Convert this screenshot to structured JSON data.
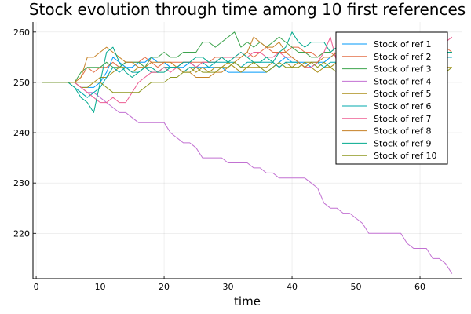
{
  "chart_data": {
    "type": "line",
    "title": "Stock evolution through time among 10 first references",
    "xlabel": "time",
    "ylabel": "",
    "xlim": [
      -0.5,
      66.5
    ],
    "ylim": [
      211,
      262
    ],
    "xticks": [
      0,
      10,
      20,
      30,
      40,
      50,
      60
    ],
    "yticks": [
      220,
      230,
      240,
      250,
      260
    ],
    "grid": true,
    "legend_position": "top-right",
    "x": [
      1,
      2,
      3,
      4,
      5,
      6,
      7,
      8,
      9,
      10,
      11,
      12,
      13,
      14,
      15,
      16,
      17,
      18,
      19,
      20,
      21,
      22,
      23,
      24,
      25,
      26,
      27,
      28,
      29,
      30,
      31,
      32,
      33,
      34,
      35,
      36,
      37,
      38,
      39,
      40,
      41,
      42,
      43,
      44,
      45,
      46,
      47,
      48,
      49,
      50,
      51,
      52,
      53,
      54,
      55,
      56,
      57,
      58,
      59,
      60,
      61,
      62,
      63,
      64,
      65
    ],
    "series": [
      {
        "name": "Stock of ref 1",
        "color": "#009AFA",
        "values": [
          250,
          250,
          250,
          250,
          250,
          250,
          249,
          249,
          249,
          250,
          252,
          255,
          254,
          253,
          253,
          254,
          254,
          255,
          254,
          254,
          253,
          253,
          253,
          254,
          253,
          253,
          253,
          253,
          253,
          252,
          252,
          252,
          252,
          252,
          252,
          252,
          253,
          254,
          255,
          254,
          254,
          254,
          253,
          254,
          254,
          255,
          256,
          257,
          256,
          255,
          256,
          256,
          255,
          255,
          256,
          256,
          255,
          254,
          254,
          254,
          255,
          255,
          255,
          255,
          255
        ]
      },
      {
        "name": "Stock of ref 2",
        "color": "#E36F47",
        "values": [
          250,
          250,
          250,
          250,
          250,
          250,
          251,
          253,
          252,
          253,
          253,
          254,
          253,
          254,
          254,
          254,
          255,
          254,
          253,
          254,
          254,
          254,
          254,
          254,
          254,
          254,
          254,
          255,
          255,
          255,
          255,
          255,
          256,
          255,
          256,
          257,
          256,
          256,
          256,
          257,
          257,
          256,
          256,
          255,
          256,
          256,
          255,
          255,
          255,
          255,
          256,
          256,
          256,
          256,
          256,
          255,
          256,
          255,
          255,
          255,
          256,
          256,
          256,
          257,
          256
        ]
      },
      {
        "name": "Stock of ref 3",
        "color": "#3EA44E",
        "values": [
          250,
          250,
          250,
          250,
          250,
          250,
          252,
          253,
          253,
          253,
          254,
          253,
          253,
          254,
          254,
          254,
          253,
          255,
          255,
          256,
          255,
          255,
          256,
          256,
          256,
          258,
          258,
          257,
          258,
          259,
          260,
          257,
          258,
          257,
          258,
          257,
          258,
          259,
          258,
          257,
          256,
          256,
          255,
          255,
          256,
          256,
          257,
          256,
          256,
          255,
          256,
          257,
          257,
          256,
          256,
          257,
          256,
          256,
          256,
          257,
          256,
          256,
          257,
          256,
          256
        ]
      },
      {
        "name": "Stock of ref 4",
        "color": "#C271D2",
        "values": [
          250,
          250,
          250,
          250,
          250,
          250,
          249,
          248,
          248,
          247,
          246,
          245,
          244,
          244,
          243,
          242,
          242,
          242,
          242,
          242,
          240,
          239,
          238,
          238,
          237,
          235,
          235,
          235,
          235,
          234,
          234,
          234,
          234,
          233,
          233,
          232,
          232,
          231,
          231,
          231,
          231,
          231,
          230,
          229,
          226,
          225,
          225,
          224,
          224,
          223,
          222,
          220,
          220,
          220,
          220,
          220,
          220,
          218,
          217,
          217,
          217,
          215,
          215,
          214,
          212
        ]
      },
      {
        "name": "Stock of ref 5",
        "color": "#AC8D18",
        "values": [
          250,
          250,
          250,
          250,
          250,
          250,
          249,
          249,
          250,
          251,
          251,
          252,
          253,
          253,
          252,
          253,
          253,
          252,
          252,
          253,
          253,
          253,
          252,
          253,
          252,
          253,
          252,
          253,
          253,
          254,
          253,
          252,
          253,
          253,
          253,
          253,
          254,
          253,
          254,
          253,
          254,
          253,
          253,
          252,
          253,
          253,
          254,
          253,
          254,
          254,
          253,
          254,
          253,
          254,
          254,
          255,
          255,
          254,
          255,
          254,
          254,
          255,
          254,
          253,
          253
        ]
      },
      {
        "name": "Stock of ref 6",
        "color": "#00A9AD",
        "values": [
          250,
          250,
          250,
          250,
          250,
          249,
          248,
          247,
          248,
          249,
          251,
          253,
          252,
          253,
          252,
          252,
          253,
          252,
          252,
          253,
          253,
          253,
          252,
          253,
          253,
          254,
          253,
          254,
          254,
          254,
          254,
          253,
          254,
          254,
          254,
          254,
          254,
          253,
          254,
          254,
          254,
          253,
          254,
          254,
          253,
          254,
          254,
          254,
          253,
          254,
          254,
          254,
          254,
          254,
          253,
          254,
          254,
          254,
          254,
          254,
          253,
          254,
          254,
          255,
          255
        ]
      },
      {
        "name": "Stock of ref 7",
        "color": "#ED5D92",
        "values": [
          250,
          250,
          250,
          250,
          250,
          250,
          249,
          248,
          247,
          246,
          246,
          247,
          246,
          246,
          248,
          250,
          251,
          252,
          252,
          253,
          252,
          253,
          254,
          254,
          253,
          254,
          254,
          254,
          255,
          255,
          255,
          256,
          255,
          256,
          256,
          255,
          255,
          256,
          255,
          255,
          254,
          253,
          253,
          254,
          256,
          259,
          254,
          255,
          256,
          256,
          255,
          256,
          255,
          256,
          255,
          256,
          256,
          255,
          256,
          256,
          256,
          257,
          257,
          258,
          259
        ]
      },
      {
        "name": "Stock of ref 8",
        "color": "#C68125",
        "values": [
          250,
          250,
          250,
          250,
          250,
          250,
          251,
          255,
          255,
          256,
          257,
          256,
          255,
          254,
          254,
          253,
          253,
          254,
          254,
          254,
          254,
          253,
          252,
          252,
          251,
          251,
          251,
          252,
          252,
          253,
          254,
          255,
          256,
          259,
          258,
          257,
          257,
          258,
          256,
          255,
          254,
          253,
          254,
          254,
          255,
          255,
          256,
          256,
          255,
          255,
          255,
          256,
          256,
          256,
          256,
          255,
          256,
          256,
          256,
          255,
          255,
          256,
          256,
          256,
          256
        ]
      },
      {
        "name": "Stock of ref 9",
        "color": "#00A98D",
        "values": [
          250,
          250,
          250,
          250,
          250,
          249,
          247,
          246,
          244,
          250,
          256,
          257,
          254,
          252,
          251,
          252,
          253,
          253,
          252,
          252,
          253,
          253,
          254,
          254,
          255,
          255,
          254,
          254,
          255,
          254,
          255,
          256,
          255,
          254,
          254,
          255,
          254,
          256,
          257,
          260,
          258,
          257,
          258,
          258,
          258,
          256,
          257,
          258,
          259,
          257,
          256,
          256,
          256,
          256,
          257,
          256,
          256,
          256,
          256,
          256,
          256,
          256,
          256,
          256,
          256
        ]
      },
      {
        "name": "Stock of ref 10",
        "color": "#8E971E",
        "values": [
          250,
          250,
          250,
          250,
          250,
          250,
          250,
          250,
          250,
          250,
          249,
          248,
          248,
          248,
          248,
          248,
          249,
          250,
          250,
          250,
          251,
          251,
          252,
          252,
          253,
          252,
          252,
          252,
          253,
          253,
          254,
          253,
          253,
          254,
          253,
          252,
          253,
          254,
          253,
          253,
          253,
          254,
          254,
          253,
          254,
          253,
          252,
          253,
          253,
          253,
          252,
          253,
          253,
          253,
          254,
          253,
          253,
          253,
          253,
          254,
          253,
          253,
          252,
          252,
          253
        ]
      }
    ]
  }
}
